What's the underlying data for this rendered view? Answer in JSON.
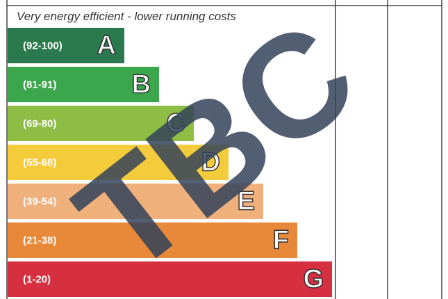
{
  "header": {
    "text": "Very energy efficient - lower running costs"
  },
  "bands": [
    {
      "range": "(92-100)",
      "letter": "A"
    },
    {
      "range": "(81-91)",
      "letter": "B"
    },
    {
      "range": "(69-80)",
      "letter": "C"
    },
    {
      "range": "(55-68)",
      "letter": "D"
    },
    {
      "range": "(39-54)",
      "letter": "E"
    },
    {
      "range": "(21-38)",
      "letter": "F"
    },
    {
      "range": "(1-20)",
      "letter": "G"
    }
  ],
  "watermark": "TBC"
}
